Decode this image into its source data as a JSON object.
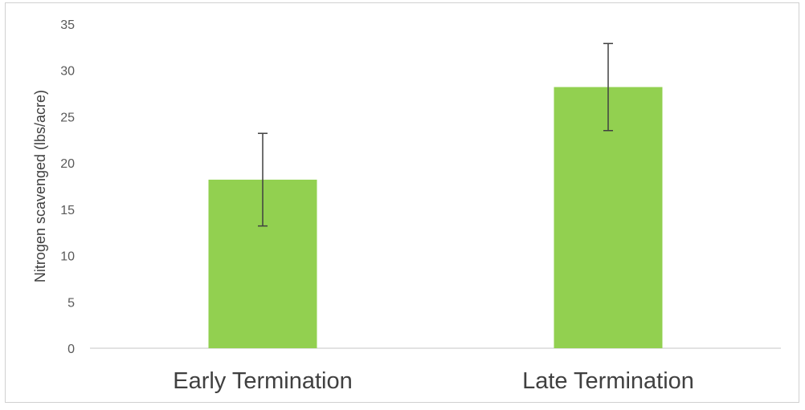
{
  "chart_data": {
    "type": "bar",
    "categories": [
      "Early Termination",
      "Late Termination"
    ],
    "values": [
      18.2,
      28.2
    ],
    "error": [
      5.0,
      4.7
    ],
    "ylabel": "Nitrogen scavenged (lbs/acre)",
    "xlabel": "",
    "title": "",
    "ylim": [
      0,
      35
    ],
    "yticks": [
      0,
      5,
      10,
      15,
      20,
      25,
      30,
      35
    ],
    "bar_color": "#92d050",
    "grid": false,
    "legend": "none"
  }
}
